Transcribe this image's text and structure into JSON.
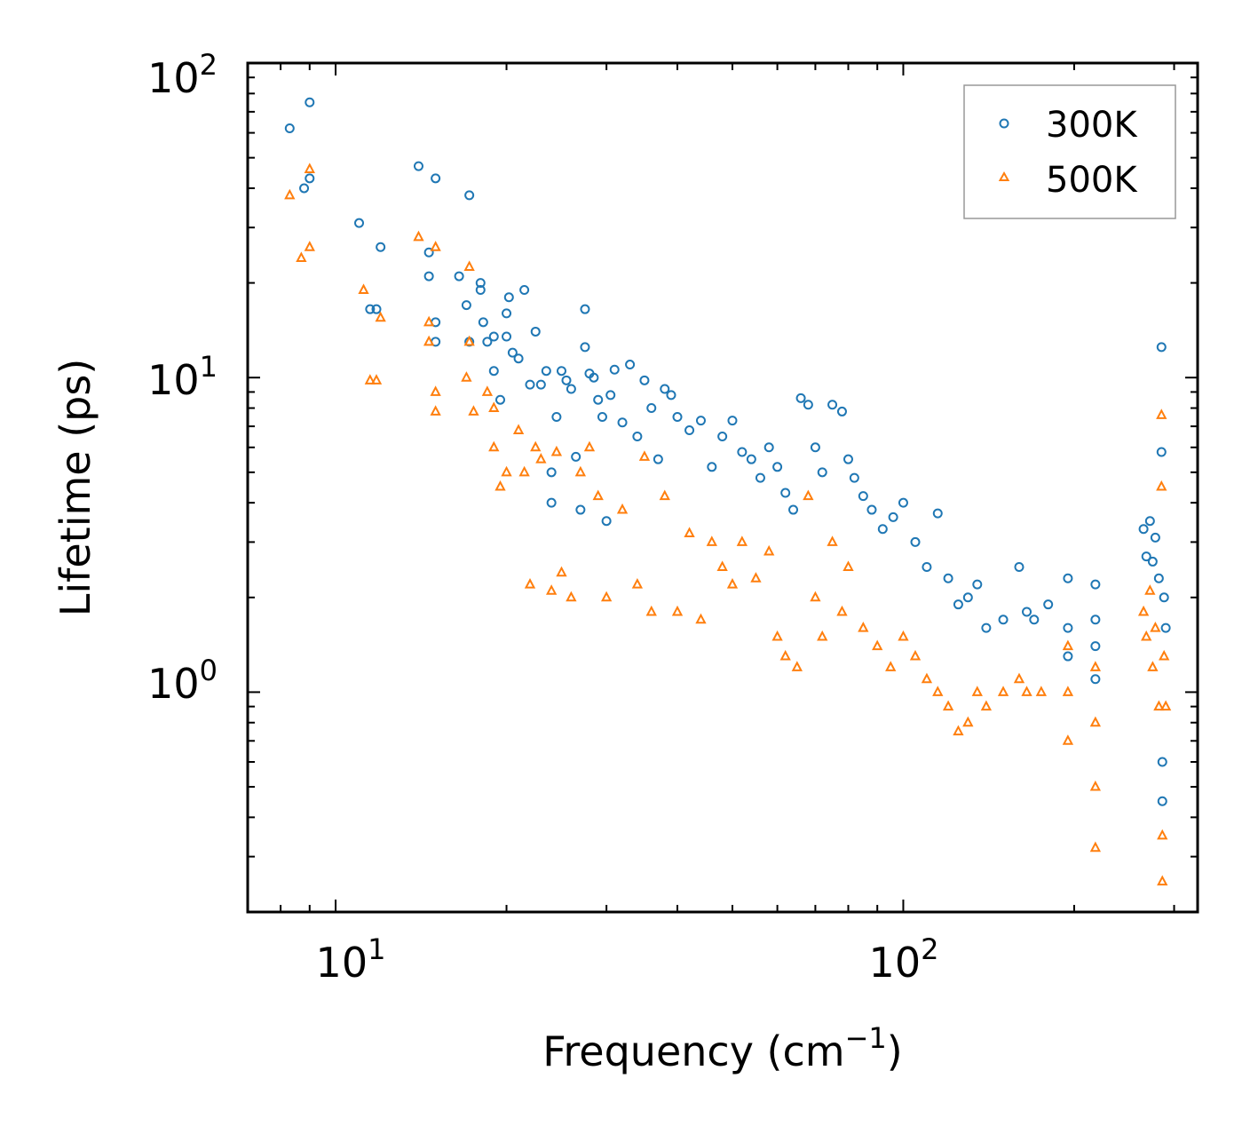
{
  "chart_data": {
    "type": "scatter",
    "title": "",
    "xlabel": "Frequency (cm",
    "xlabel_sup": "−1",
    "xlabel_end": ")",
    "ylabel": "Lifetime (ps)",
    "xscale": "log",
    "yscale": "log",
    "xlim": [
      7.0,
      330
    ],
    "ylim": [
      0.2,
      100
    ],
    "x_ticks": [
      {
        "value": 10,
        "base": "10",
        "exp": "1"
      },
      {
        "value": 100,
        "base": "10",
        "exp": "2"
      }
    ],
    "y_ticks": [
      {
        "value": 1,
        "base": "10",
        "exp": "0"
      },
      {
        "value": 10,
        "base": "10",
        "exp": "1"
      },
      {
        "value": 100,
        "base": "10",
        "exp": "2"
      }
    ],
    "legend_position": "top-right",
    "series": [
      {
        "name": "300K",
        "marker": "circle",
        "color": "#1f77b4",
        "points": [
          [
            8.3,
            62
          ],
          [
            8.8,
            40
          ],
          [
            9.0,
            75
          ],
          [
            9.0,
            43
          ],
          [
            11.0,
            31
          ],
          [
            11.5,
            16.5
          ],
          [
            11.8,
            16.5
          ],
          [
            12.0,
            26
          ],
          [
            14.0,
            47
          ],
          [
            14.6,
            25
          ],
          [
            14.6,
            21
          ],
          [
            15.0,
            43
          ],
          [
            15.0,
            15
          ],
          [
            15.0,
            13
          ],
          [
            16.5,
            21
          ],
          [
            17.0,
            17
          ],
          [
            17.2,
            38
          ],
          [
            17.2,
            13
          ],
          [
            18.0,
            20
          ],
          [
            18.0,
            19
          ],
          [
            18.2,
            15
          ],
          [
            18.5,
            13
          ],
          [
            19.0,
            13.5
          ],
          [
            19.0,
            10.5
          ],
          [
            19.5,
            8.5
          ],
          [
            20.0,
            16
          ],
          [
            20.0,
            13.5
          ],
          [
            20.2,
            18
          ],
          [
            20.5,
            12
          ],
          [
            21.0,
            11.5
          ],
          [
            21.5,
            19
          ],
          [
            22.0,
            9.5
          ],
          [
            22.5,
            14
          ],
          [
            23.0,
            9.5
          ],
          [
            23.5,
            10.5
          ],
          [
            24.0,
            5
          ],
          [
            24.0,
            4
          ],
          [
            24.5,
            7.5
          ],
          [
            25.0,
            10.5
          ],
          [
            25.5,
            9.8
          ],
          [
            26.0,
            9.2
          ],
          [
            26.5,
            5.6
          ],
          [
            27.0,
            3.8
          ],
          [
            27.5,
            16.5
          ],
          [
            27.5,
            12.5
          ],
          [
            28.0,
            10.3
          ],
          [
            28.5,
            10
          ],
          [
            29.0,
            8.5
          ],
          [
            29.5,
            7.5
          ],
          [
            30.0,
            3.5
          ],
          [
            30.5,
            8.8
          ],
          [
            31.0,
            10.6
          ],
          [
            32.0,
            7.2
          ],
          [
            33.0,
            11
          ],
          [
            34.0,
            6.5
          ],
          [
            35.0,
            9.8
          ],
          [
            36.0,
            8.0
          ],
          [
            37.0,
            5.5
          ],
          [
            38.0,
            9.2
          ],
          [
            39.0,
            8.8
          ],
          [
            40.0,
            7.5
          ],
          [
            42.0,
            6.8
          ],
          [
            44.0,
            7.3
          ],
          [
            46.0,
            5.2
          ],
          [
            48.0,
            6.5
          ],
          [
            50.0,
            7.3
          ],
          [
            52.0,
            5.8
          ],
          [
            54.0,
            5.5
          ],
          [
            56.0,
            4.8
          ],
          [
            58.0,
            6.0
          ],
          [
            60.0,
            5.2
          ],
          [
            62.0,
            4.3
          ],
          [
            64.0,
            3.8
          ],
          [
            66.0,
            8.6
          ],
          [
            68.0,
            8.2
          ],
          [
            70.0,
            6.0
          ],
          [
            72.0,
            5.0
          ],
          [
            75.0,
            8.2
          ],
          [
            78.0,
            7.8
          ],
          [
            80.0,
            5.5
          ],
          [
            82.0,
            4.8
          ],
          [
            85.0,
            4.2
          ],
          [
            88.0,
            3.8
          ],
          [
            92.0,
            3.3
          ],
          [
            96.0,
            3.6
          ],
          [
            100.0,
            4.0
          ],
          [
            105.0,
            3.0
          ],
          [
            110.0,
            2.5
          ],
          [
            115.0,
            3.7
          ],
          [
            120.0,
            2.3
          ],
          [
            125.0,
            1.9
          ],
          [
            130.0,
            2.0
          ],
          [
            135.0,
            2.2
          ],
          [
            140.0,
            1.6
          ],
          [
            150.0,
            1.7
          ],
          [
            160.0,
            2.5
          ],
          [
            165.0,
            1.8
          ],
          [
            170.0,
            1.7
          ],
          [
            180.0,
            1.9
          ],
          [
            195.0,
            2.3
          ],
          [
            195.0,
            1.6
          ],
          [
            195.0,
            1.3
          ],
          [
            218.0,
            2.2
          ],
          [
            218.0,
            1.7
          ],
          [
            218.0,
            1.4
          ],
          [
            218.0,
            1.1
          ],
          [
            265.0,
            3.3
          ],
          [
            268.0,
            2.7
          ],
          [
            272.0,
            3.5
          ],
          [
            275.0,
            2.6
          ],
          [
            278.0,
            3.1
          ],
          [
            282.0,
            2.3
          ],
          [
            285.0,
            12.5
          ],
          [
            285.0,
            5.8
          ],
          [
            288.0,
            2.0
          ],
          [
            290.0,
            1.6
          ],
          [
            286.0,
            0.6
          ],
          [
            286.0,
            0.45
          ]
        ]
      },
      {
        "name": "500K",
        "marker": "triangle",
        "color": "#ff7f0e",
        "points": [
          [
            8.3,
            38
          ],
          [
            8.7,
            24
          ],
          [
            9.0,
            46
          ],
          [
            9.0,
            26
          ],
          [
            11.2,
            19
          ],
          [
            11.5,
            9.8
          ],
          [
            11.8,
            9.8
          ],
          [
            12.0,
            15.5
          ],
          [
            14.0,
            28
          ],
          [
            14.6,
            15
          ],
          [
            14.6,
            13
          ],
          [
            15.0,
            26
          ],
          [
            15.0,
            9
          ],
          [
            15.0,
            7.8
          ],
          [
            17.0,
            10
          ],
          [
            17.2,
            22.5
          ],
          [
            17.2,
            13
          ],
          [
            17.5,
            7.8
          ],
          [
            18.5,
            9
          ],
          [
            19.0,
            8
          ],
          [
            19.0,
            6
          ],
          [
            19.5,
            4.5
          ],
          [
            20.0,
            5
          ],
          [
            21.0,
            6.8
          ],
          [
            21.5,
            5.0
          ],
          [
            22.0,
            2.2
          ],
          [
            22.5,
            6
          ],
          [
            23.0,
            5.5
          ],
          [
            24.0,
            2.1
          ],
          [
            24.5,
            5.8
          ],
          [
            25.0,
            2.4
          ],
          [
            26.0,
            2.0
          ],
          [
            27.0,
            5.0
          ],
          [
            28.0,
            6.0
          ],
          [
            29.0,
            4.2
          ],
          [
            30.0,
            2.0
          ],
          [
            32.0,
            3.8
          ],
          [
            34.0,
            2.2
          ],
          [
            35.0,
            5.6
          ],
          [
            36.0,
            1.8
          ],
          [
            38.0,
            4.2
          ],
          [
            40.0,
            1.8
          ],
          [
            42.0,
            3.2
          ],
          [
            44.0,
            1.7
          ],
          [
            46.0,
            3.0
          ],
          [
            48.0,
            2.5
          ],
          [
            50.0,
            2.2
          ],
          [
            52.0,
            3.0
          ],
          [
            55.0,
            2.3
          ],
          [
            58.0,
            2.8
          ],
          [
            60.0,
            1.5
          ],
          [
            62.0,
            1.3
          ],
          [
            65.0,
            1.2
          ],
          [
            68.0,
            4.2
          ],
          [
            70.0,
            2.0
          ],
          [
            72.0,
            1.5
          ],
          [
            75.0,
            3.0
          ],
          [
            78.0,
            1.8
          ],
          [
            80.0,
            2.5
          ],
          [
            85.0,
            1.6
          ],
          [
            90.0,
            1.4
          ],
          [
            95.0,
            1.2
          ],
          [
            100.0,
            1.5
          ],
          [
            105.0,
            1.3
          ],
          [
            110.0,
            1.1
          ],
          [
            115.0,
            1.0
          ],
          [
            120.0,
            0.9
          ],
          [
            125.0,
            0.75
          ],
          [
            130.0,
            0.8
          ],
          [
            135.0,
            1.0
          ],
          [
            140.0,
            0.9
          ],
          [
            150.0,
            1.0
          ],
          [
            160.0,
            1.1
          ],
          [
            165.0,
            1.0
          ],
          [
            175.0,
            1.0
          ],
          [
            195.0,
            1.4
          ],
          [
            195.0,
            1.0
          ],
          [
            195.0,
            0.7
          ],
          [
            218.0,
            1.2
          ],
          [
            218.0,
            0.8
          ],
          [
            218.0,
            0.5
          ],
          [
            218.0,
            0.32
          ],
          [
            265.0,
            1.8
          ],
          [
            268.0,
            1.5
          ],
          [
            272.0,
            2.1
          ],
          [
            275.0,
            1.2
          ],
          [
            278.0,
            1.6
          ],
          [
            282.0,
            0.9
          ],
          [
            285.0,
            7.6
          ],
          [
            285.0,
            4.5
          ],
          [
            288.0,
            1.3
          ],
          [
            290.0,
            0.9
          ],
          [
            286.0,
            0.35
          ],
          [
            286.0,
            0.25
          ]
        ]
      }
    ]
  }
}
